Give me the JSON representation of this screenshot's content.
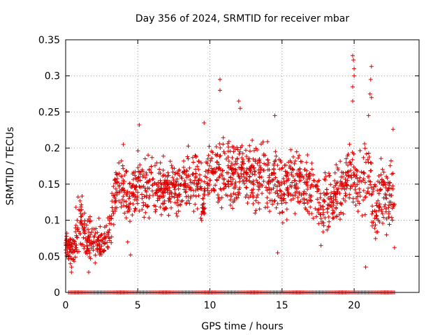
{
  "chart_data": {
    "type": "scatter",
    "title": "Day 356 of 2024, SRMTID for receiver mbar",
    "xlabel": "GPS time / hours",
    "ylabel": "SRMTID / TECUs",
    "xlim": [
      0,
      24.5
    ],
    "ylim": [
      0,
      0.35
    ],
    "xticks": [
      0,
      5,
      10,
      15,
      20
    ],
    "xtick_labels": [
      "0",
      "5",
      "10",
      "15",
      "20"
    ],
    "yticks": [
      0,
      0.05,
      0.1,
      0.15,
      0.2,
      0.25,
      0.3,
      0.35
    ],
    "ytick_labels": [
      "0",
      "0.05",
      "0.1",
      "0.15",
      "0.2",
      "0.25",
      "0.3",
      "0.35"
    ],
    "grid": true,
    "marker": "+",
    "series_color": "#dd0000",
    "zero_band": {
      "y": 0,
      "x_start": 0.2,
      "x_end": 22.8,
      "step": 0.1
    },
    "point_density_per_hour": 70,
    "trend": [
      {
        "x": 0.0,
        "mean": 0.065,
        "spread": 0.02
      },
      {
        "x": 0.5,
        "mean": 0.06,
        "spread": 0.025
      },
      {
        "x": 1.0,
        "mean": 0.1,
        "spread": 0.04
      },
      {
        "x": 1.5,
        "mean": 0.07,
        "spread": 0.025
      },
      {
        "x": 2.0,
        "mean": 0.075,
        "spread": 0.03
      },
      {
        "x": 2.5,
        "mean": 0.065,
        "spread": 0.025
      },
      {
        "x": 3.0,
        "mean": 0.08,
        "spread": 0.03
      },
      {
        "x": 3.5,
        "mean": 0.14,
        "spread": 0.04
      },
      {
        "x": 4.0,
        "mean": 0.15,
        "spread": 0.04
      },
      {
        "x": 4.5,
        "mean": 0.12,
        "spread": 0.045
      },
      {
        "x": 5.0,
        "mean": 0.15,
        "spread": 0.04
      },
      {
        "x": 6.0,
        "mean": 0.14,
        "spread": 0.04
      },
      {
        "x": 7.0,
        "mean": 0.145,
        "spread": 0.035
      },
      {
        "x": 8.0,
        "mean": 0.145,
        "spread": 0.035
      },
      {
        "x": 9.0,
        "mean": 0.16,
        "spread": 0.04
      },
      {
        "x": 9.5,
        "mean": 0.125,
        "spread": 0.03
      },
      {
        "x": 10.0,
        "mean": 0.175,
        "spread": 0.045
      },
      {
        "x": 11.0,
        "mean": 0.16,
        "spread": 0.045
      },
      {
        "x": 12.0,
        "mean": 0.17,
        "spread": 0.045
      },
      {
        "x": 13.0,
        "mean": 0.16,
        "spread": 0.045
      },
      {
        "x": 14.0,
        "mean": 0.16,
        "spread": 0.045
      },
      {
        "x": 15.0,
        "mean": 0.145,
        "spread": 0.045
      },
      {
        "x": 16.0,
        "mean": 0.16,
        "spread": 0.045
      },
      {
        "x": 17.0,
        "mean": 0.14,
        "spread": 0.04
      },
      {
        "x": 18.0,
        "mean": 0.12,
        "spread": 0.04
      },
      {
        "x": 19.0,
        "mean": 0.14,
        "spread": 0.04
      },
      {
        "x": 19.8,
        "mean": 0.17,
        "spread": 0.04
      },
      {
        "x": 20.5,
        "mean": 0.15,
        "spread": 0.04
      },
      {
        "x": 21.0,
        "mean": 0.17,
        "spread": 0.05
      },
      {
        "x": 21.5,
        "mean": 0.11,
        "spread": 0.04
      },
      {
        "x": 22.0,
        "mean": 0.14,
        "spread": 0.045
      },
      {
        "x": 22.8,
        "mean": 0.13,
        "spread": 0.045
      }
    ],
    "highlights": [
      {
        "x": 10.7,
        "y": 0.295
      },
      {
        "x": 10.7,
        "y": 0.28
      },
      {
        "x": 12.0,
        "y": 0.265
      },
      {
        "x": 12.1,
        "y": 0.255
      },
      {
        "x": 14.5,
        "y": 0.245
      },
      {
        "x": 9.6,
        "y": 0.235
      },
      {
        "x": 19.9,
        "y": 0.328
      },
      {
        "x": 19.95,
        "y": 0.322
      },
      {
        "x": 20.0,
        "y": 0.31
      },
      {
        "x": 20.0,
        "y": 0.3
      },
      {
        "x": 19.9,
        "y": 0.285
      },
      {
        "x": 19.9,
        "y": 0.265
      },
      {
        "x": 21.2,
        "y": 0.313
      },
      {
        "x": 21.15,
        "y": 0.295
      },
      {
        "x": 21.1,
        "y": 0.275
      },
      {
        "x": 21.2,
        "y": 0.27
      },
      {
        "x": 21.0,
        "y": 0.245
      },
      {
        "x": 22.7,
        "y": 0.226
      },
      {
        "x": 5.1,
        "y": 0.232
      },
      {
        "x": 4.0,
        "y": 0.205
      },
      {
        "x": 0.4,
        "y": 0.028
      },
      {
        "x": 1.6,
        "y": 0.028
      },
      {
        "x": 4.5,
        "y": 0.052
      },
      {
        "x": 14.7,
        "y": 0.055
      },
      {
        "x": 17.7,
        "y": 0.065
      },
      {
        "x": 20.8,
        "y": 0.035
      },
      {
        "x": 22.8,
        "y": 0.062
      }
    ]
  }
}
